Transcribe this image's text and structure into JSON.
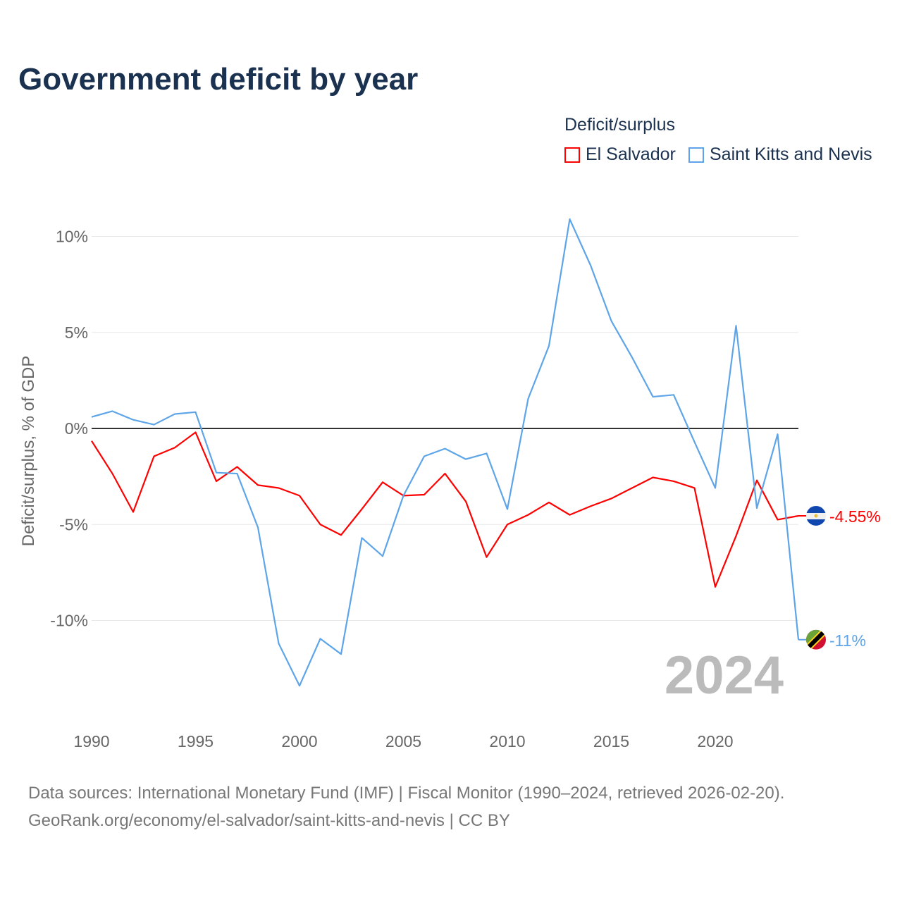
{
  "chart_data": {
    "type": "line",
    "title": "Government deficit by year",
    "ylabel": "Deficit/surplus, % of GDP",
    "xlabel": "",
    "legend_title": "Deficit/surplus",
    "legend_placement": "top-right",
    "ylim": [
      -15,
      12
    ],
    "xlim": [
      1990,
      2024
    ],
    "x_ticks": [
      1990,
      1995,
      2000,
      2005,
      2010,
      2015,
      2020
    ],
    "x_tick_labels": [
      "1990",
      "1995",
      "2000",
      "2005",
      "2010",
      "2015",
      "2020"
    ],
    "y_ticks": [
      10,
      5,
      0,
      -5,
      -10
    ],
    "y_tick_labels": [
      "10%",
      "5%",
      "0%",
      "-5%",
      "-10%"
    ],
    "year_watermark": "2024",
    "x": [
      1990,
      1991,
      1992,
      1993,
      1994,
      1995,
      1996,
      1997,
      1998,
      1999,
      2000,
      2001,
      2002,
      2003,
      2004,
      2005,
      2006,
      2007,
      2008,
      2009,
      2010,
      2011,
      2012,
      2013,
      2014,
      2015,
      2016,
      2017,
      2018,
      2019,
      2020,
      2021,
      2022,
      2023,
      2024
    ],
    "series": [
      {
        "name": "El Salvador",
        "color": "#ff0000",
        "end_label": "-4.55%",
        "values": [
          -0.65,
          -2.35,
          -4.35,
          -1.45,
          -1.0,
          -0.2,
          -2.75,
          -2.0,
          -2.95,
          -3.1,
          -3.5,
          -5.0,
          -5.55,
          -4.2,
          -2.8,
          -3.5,
          -3.45,
          -2.35,
          -3.8,
          -6.7,
          -5.0,
          -4.5,
          -3.85,
          -4.5,
          -4.05,
          -3.65,
          -3.1,
          -2.55,
          -2.75,
          -3.1,
          -8.25,
          -5.6,
          -2.7,
          -4.75,
          -4.55
        ]
      },
      {
        "name": "Saint Kitts and Nevis",
        "color": "#5da5e8",
        "end_label": "-11%",
        "values": [
          0.6,
          0.9,
          0.45,
          0.2,
          0.75,
          0.85,
          -2.3,
          -2.35,
          -5.15,
          -11.2,
          -13.4,
          -10.95,
          -11.75,
          -5.7,
          -6.65,
          -3.5,
          -1.45,
          -1.05,
          -1.6,
          -1.3,
          -4.2,
          1.55,
          4.3,
          10.9,
          8.5,
          5.6,
          3.7,
          1.65,
          1.75,
          -0.7,
          -3.1,
          5.35,
          -4.15,
          -0.3,
          -11.0
        ]
      }
    ]
  },
  "footer": {
    "line1": "Data sources: International Monetary Fund (IMF) | Fiscal Monitor (1990–2024, retrieved 2026-02-20).",
    "line2": "GeoRank.org/economy/el-salvador/saint-kitts-and-nevis | CC BY"
  }
}
